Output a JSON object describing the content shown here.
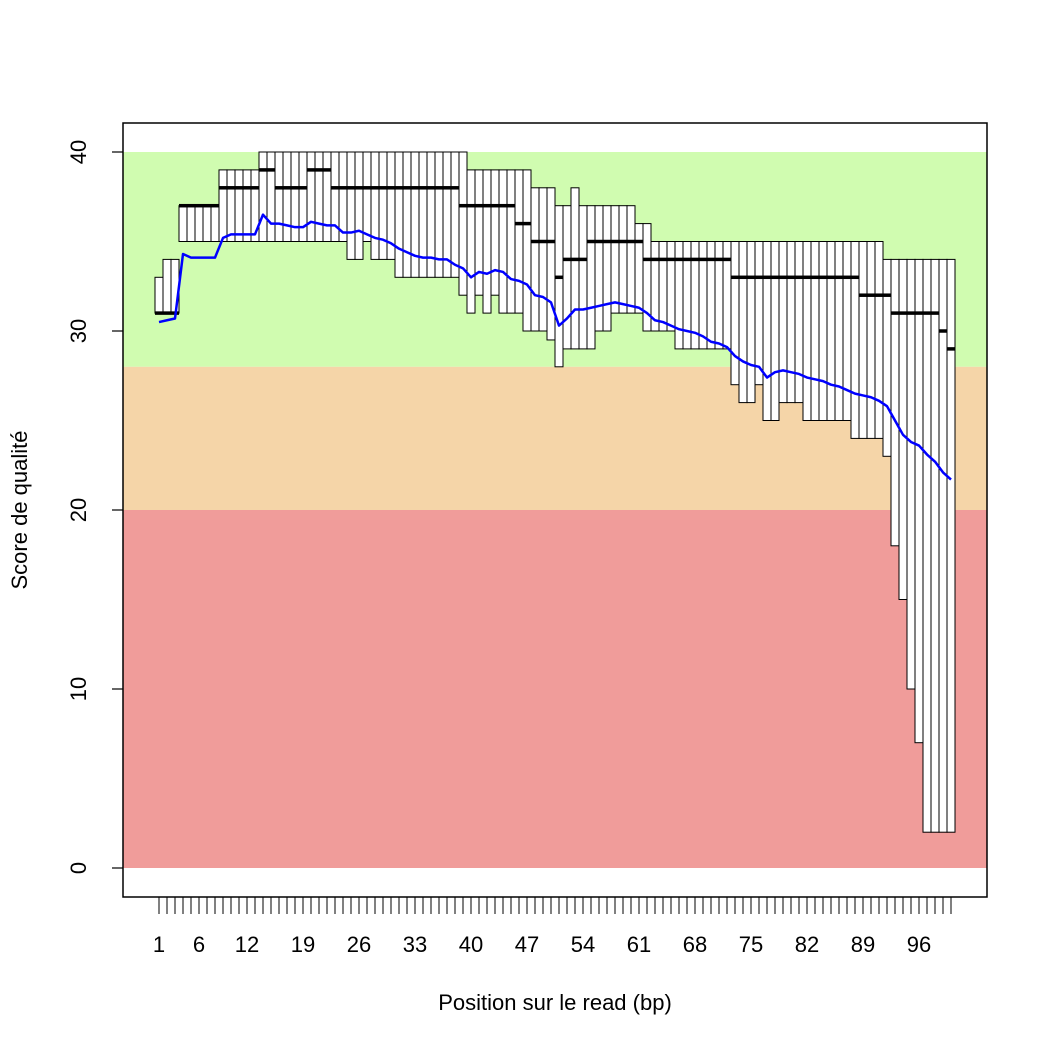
{
  "chart_data": {
    "type": "boxplot",
    "title": "",
    "xlabel": "Position sur le read (bp)",
    "ylabel": "Score de qualité",
    "ylim": [
      0,
      40
    ],
    "yticks": [
      0,
      10,
      20,
      30,
      40
    ],
    "xtick_labels": [
      "1",
      "6",
      "12",
      "19",
      "26",
      "33",
      "40",
      "47",
      "54",
      "61",
      "68",
      "75",
      "82",
      "89",
      "96"
    ],
    "xtick_positions": [
      1,
      6,
      12,
      19,
      26,
      33,
      40,
      47,
      54,
      61,
      68,
      75,
      82,
      89,
      96
    ],
    "bands": [
      {
        "from": 28,
        "to": 40,
        "color": "#d0fcb0"
      },
      {
        "from": 20,
        "to": 28,
        "color": "#f5d5a8"
      },
      {
        "from": 0,
        "to": 20,
        "color": "#f09c9a"
      }
    ],
    "box_colors": {
      "fill": "#ffffff",
      "stroke": "#000000",
      "median": "#000000"
    },
    "mean_line": {
      "color": "#0000ff"
    },
    "positions": [
      1,
      2,
      3,
      4,
      5,
      6,
      7,
      8,
      9,
      10,
      11,
      12,
      13,
      14,
      15,
      16,
      17,
      18,
      19,
      20,
      21,
      22,
      23,
      24,
      25,
      26,
      27,
      28,
      29,
      30,
      31,
      32,
      33,
      34,
      35,
      36,
      37,
      38,
      39,
      40,
      41,
      42,
      43,
      44,
      45,
      46,
      47,
      48,
      49,
      50,
      51,
      52,
      53,
      54,
      55,
      56,
      57,
      58,
      59,
      60,
      61,
      62,
      63,
      64,
      65,
      66,
      67,
      68,
      69,
      70,
      71,
      72,
      73,
      74,
      75,
      76,
      77,
      78,
      79,
      80,
      81,
      82,
      83,
      84,
      85,
      86,
      87,
      88,
      89,
      90,
      91,
      92,
      93,
      94,
      95,
      96,
      97,
      98,
      99,
      100
    ],
    "box_low": [
      31,
      31,
      31,
      35,
      35,
      35,
      35,
      35,
      35,
      35,
      35,
      35,
      35,
      35,
      35,
      35,
      35,
      35,
      35,
      35,
      35,
      35,
      35,
      35,
      34,
      34,
      35,
      34,
      34,
      34,
      33,
      33,
      33,
      33,
      33,
      33,
      33,
      33,
      32,
      31,
      32,
      31,
      32,
      31,
      31,
      31,
      30,
      30,
      30,
      29.5,
      28,
      29,
      29,
      29,
      29,
      30,
      30,
      31,
      31,
      31,
      31,
      30,
      30,
      30,
      30,
      29,
      29,
      29,
      29,
      29,
      29,
      29,
      27,
      26,
      26,
      27,
      25,
      25,
      26,
      26,
      26,
      25,
      25,
      25,
      25,
      25,
      25,
      24,
      24,
      24,
      24,
      23,
      18,
      15,
      10,
      7,
      2,
      2,
      2,
      2
    ],
    "box_high": [
      33,
      34,
      34,
      37,
      37,
      37,
      37,
      37,
      39,
      39,
      39,
      39,
      39,
      40,
      40,
      40,
      40,
      40,
      40,
      40,
      40,
      40,
      40,
      40,
      40,
      40,
      40,
      40,
      40,
      40,
      40,
      40,
      40,
      40,
      40,
      40,
      40,
      40,
      40,
      39,
      39,
      39,
      39,
      39,
      39,
      39,
      39,
      38,
      38,
      38,
      37,
      37,
      38,
      37,
      37,
      37,
      37,
      37,
      37,
      37,
      36,
      36,
      35,
      35,
      35,
      35,
      35,
      35,
      35,
      35,
      35,
      35,
      35,
      35,
      35,
      35,
      35,
      35,
      35,
      35,
      35,
      35,
      35,
      35,
      35,
      35,
      35,
      35,
      35,
      35,
      35,
      34,
      34,
      34,
      34,
      34,
      34,
      34,
      34,
      34
    ],
    "median": [
      31,
      31,
      31,
      37,
      37,
      37,
      37,
      37,
      38,
      38,
      38,
      38,
      38,
      39,
      39,
      38,
      38,
      38,
      38,
      39,
      39,
      39,
      38,
      38,
      38,
      38,
      38,
      38,
      38,
      38,
      38,
      38,
      38,
      38,
      38,
      38,
      38,
      38,
      37,
      37,
      37,
      37,
      37,
      37,
      37,
      36,
      36,
      35,
      35,
      35,
      33,
      34,
      34,
      34,
      35,
      35,
      35,
      35,
      35,
      35,
      35,
      34,
      34,
      34,
      34,
      34,
      34,
      34,
      34,
      34,
      34,
      34,
      33,
      33,
      33,
      33,
      33,
      33,
      33,
      33,
      33,
      33,
      33,
      33,
      33,
      33,
      33,
      33,
      32,
      32,
      32,
      32,
      31,
      31,
      31,
      31,
      31,
      31,
      30,
      29
    ],
    "mean": [
      30.5,
      30.6,
      30.7,
      34.3,
      34.1,
      34.1,
      34.1,
      34.1,
      35.2,
      35.4,
      35.4,
      35.4,
      35.4,
      36.5,
      36.0,
      36.0,
      35.9,
      35.8,
      35.8,
      36.1,
      36.0,
      35.9,
      35.9,
      35.5,
      35.5,
      35.6,
      35.4,
      35.2,
      35.1,
      34.9,
      34.6,
      34.4,
      34.2,
      34.1,
      34.1,
      34.0,
      34.0,
      33.7,
      33.5,
      33.0,
      33.3,
      33.2,
      33.4,
      33.3,
      32.9,
      32.8,
      32.6,
      32.0,
      31.9,
      31.6,
      30.3,
      30.7,
      31.2,
      31.2,
      31.3,
      31.4,
      31.5,
      31.6,
      31.5,
      31.4,
      31.3,
      31.0,
      30.6,
      30.5,
      30.3,
      30.1,
      30.0,
      29.9,
      29.7,
      29.4,
      29.3,
      29.1,
      28.6,
      28.3,
      28.1,
      28.0,
      27.4,
      27.7,
      27.8,
      27.7,
      27.6,
      27.4,
      27.3,
      27.2,
      27.0,
      26.9,
      26.7,
      26.5,
      26.4,
      26.3,
      26.1,
      25.8,
      25.0,
      24.2,
      23.8,
      23.6,
      23.1,
      22.7,
      22.1,
      21.7
    ]
  }
}
